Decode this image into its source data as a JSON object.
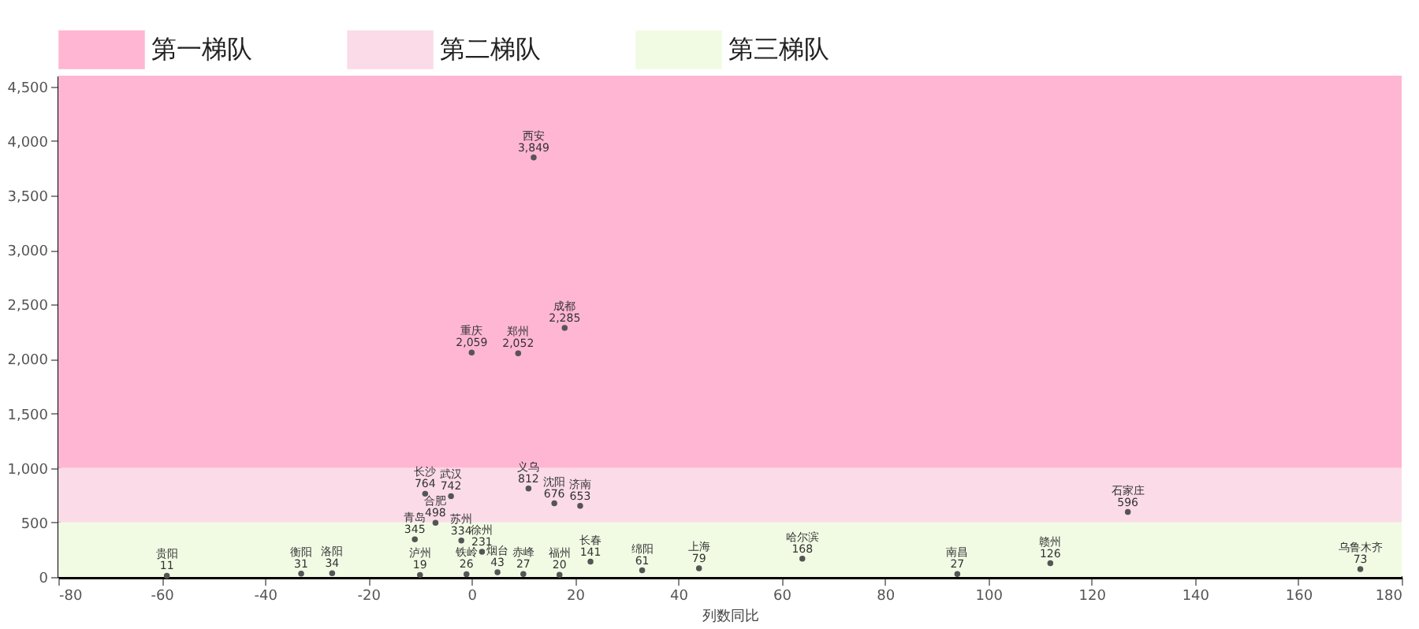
{
  "chart_data": {
    "type": "scatter",
    "xlabel": "列数同比",
    "legend": "top",
    "marker": "circle",
    "grid": false,
    "xlim": [
      -80,
      180
    ],
    "xticks": [
      -80,
      -60,
      -40,
      -20,
      0,
      20,
      40,
      60,
      80,
      100,
      120,
      140,
      160,
      180
    ],
    "ylim": [
      0,
      4600
    ],
    "yticks": [
      0,
      {
        "value": 500,
        "label": "500"
      },
      {
        "value": 1000,
        "label": "1,000"
      },
      {
        "value": 1500,
        "label": "1,500"
      },
      {
        "value": 2000,
        "label": "2,000"
      },
      {
        "value": 2500,
        "label": "2,500"
      },
      {
        "value": 3000,
        "label": "3,000"
      },
      {
        "value": 3500,
        "label": "3,500"
      },
      {
        "value": 4000,
        "label": "4,000"
      },
      {
        "value": 4500,
        "label": "4,500"
      }
    ],
    "bands": [
      {
        "axis": "y",
        "from": 1000,
        "to": 4600,
        "label": "第一梯队",
        "color": "#ffb6d3"
      },
      {
        "axis": "y",
        "from": 500,
        "to": 1000,
        "label": "第二梯队",
        "color": "#fbdbe8"
      },
      {
        "axis": "y",
        "from": 0,
        "to": 500,
        "label": "第三梯队",
        "color": "#f1fbe4"
      }
    ],
    "series": [
      {
        "color": "#555555",
        "x": [
          12,
          18,
          0,
          9,
          11,
          -9,
          -4,
          16,
          21,
          -7,
          -11,
          -2,
          2,
          127,
          64,
          23,
          112,
          44,
          172,
          33,
          5,
          -27,
          -33,
          10,
          94,
          -1,
          17,
          -10,
          -59
        ],
        "values": [
          3849,
          2285,
          2059,
          2052,
          812,
          764,
          742,
          676,
          653,
          498,
          345,
          334,
          231,
          596,
          168,
          141,
          126,
          79,
          73,
          61,
          43,
          34,
          31,
          27,
          27,
          26,
          20,
          19,
          11
        ],
        "value_labels": [
          "3,849",
          "2,285",
          "2,059",
          "2,052",
          "812",
          "764",
          "742",
          "676",
          "653",
          "498",
          "345",
          "334",
          "231",
          "596",
          "168",
          "141",
          "126",
          "79",
          "73",
          "61",
          "43",
          "34",
          "31",
          "27",
          "27",
          "26",
          "20",
          "19",
          "11"
        ]
      }
    ],
    "annotations": [
      {
        "text": "西安",
        "x": 12,
        "y": 3849
      },
      {
        "text": "成都",
        "x": 18,
        "y": 2285
      },
      {
        "text": "重庆",
        "x": 0,
        "y": 2059
      },
      {
        "text": "郑州",
        "x": 9,
        "y": 2052
      },
      {
        "text": "义乌",
        "x": 11,
        "y": 812
      },
      {
        "text": "长沙",
        "x": -9,
        "y": 764
      },
      {
        "text": "武汉",
        "x": -4,
        "y": 742
      },
      {
        "text": "沈阳",
        "x": 16,
        "y": 676
      },
      {
        "text": "济南",
        "x": 21,
        "y": 653
      },
      {
        "text": "合肥",
        "x": -7,
        "y": 498
      },
      {
        "text": "青岛",
        "x": -11,
        "y": 345
      },
      {
        "text": "苏州",
        "x": -2,
        "y": 334
      },
      {
        "text": "徐州",
        "x": 2,
        "y": 231
      },
      {
        "text": "石家庄",
        "x": 127,
        "y": 596
      },
      {
        "text": "哈尔滨",
        "x": 64,
        "y": 168
      },
      {
        "text": "长春",
        "x": 23,
        "y": 141
      },
      {
        "text": "赣州",
        "x": 112,
        "y": 126
      },
      {
        "text": "上海",
        "x": 44,
        "y": 79
      },
      {
        "text": "乌鲁木齐",
        "x": 172,
        "y": 73
      },
      {
        "text": "绵阳",
        "x": 33,
        "y": 61
      },
      {
        "text": "烟台",
        "x": 5,
        "y": 43
      },
      {
        "text": "洛阳",
        "x": -27,
        "y": 34
      },
      {
        "text": "衡阳",
        "x": -33,
        "y": 31
      },
      {
        "text": "赤峰",
        "x": 10,
        "y": 27
      },
      {
        "text": "南昌",
        "x": 94,
        "y": 27
      },
      {
        "text": "铁岭",
        "x": -1,
        "y": 26
      },
      {
        "text": "福州",
        "x": 17,
        "y": 20
      },
      {
        "text": "泸州",
        "x": -10,
        "y": 19
      },
      {
        "text": "贵阳",
        "x": -59,
        "y": 11
      }
    ]
  }
}
